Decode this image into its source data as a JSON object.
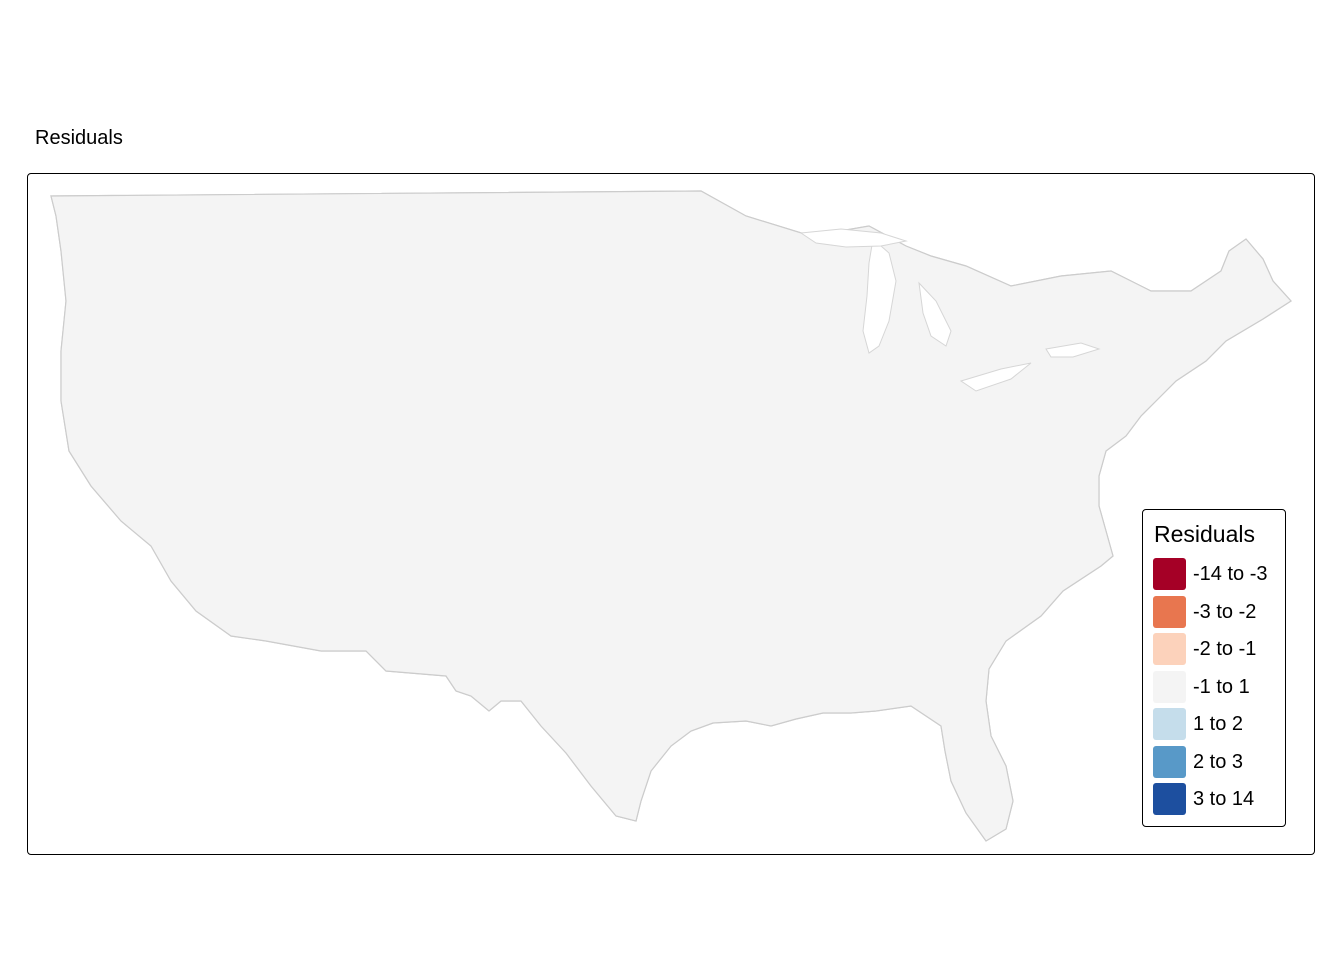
{
  "title": "Residuals",
  "map": {
    "region": "contiguous-united-states",
    "unit": "county",
    "base_fill": "#f4f4f4",
    "border_color": "#cccccc",
    "palette": "diverging-red-blue"
  },
  "legend": {
    "title": "Residuals",
    "position": "bottom-right",
    "classes": [
      {
        "label": "-14 to -3",
        "color": "#a50026"
      },
      {
        "label": "-3 to -2",
        "color": "#e8764f"
      },
      {
        "label": "-2 to -1",
        "color": "#fcd2bb"
      },
      {
        "label": "-1 to 1",
        "color": "#f4f4f4"
      },
      {
        "label": "1 to 2",
        "color": "#c5ddeb"
      },
      {
        "label": "2 to 3",
        "color": "#5899c8"
      },
      {
        "label": "3 to 14",
        "color": "#1d4f9f"
      }
    ]
  }
}
